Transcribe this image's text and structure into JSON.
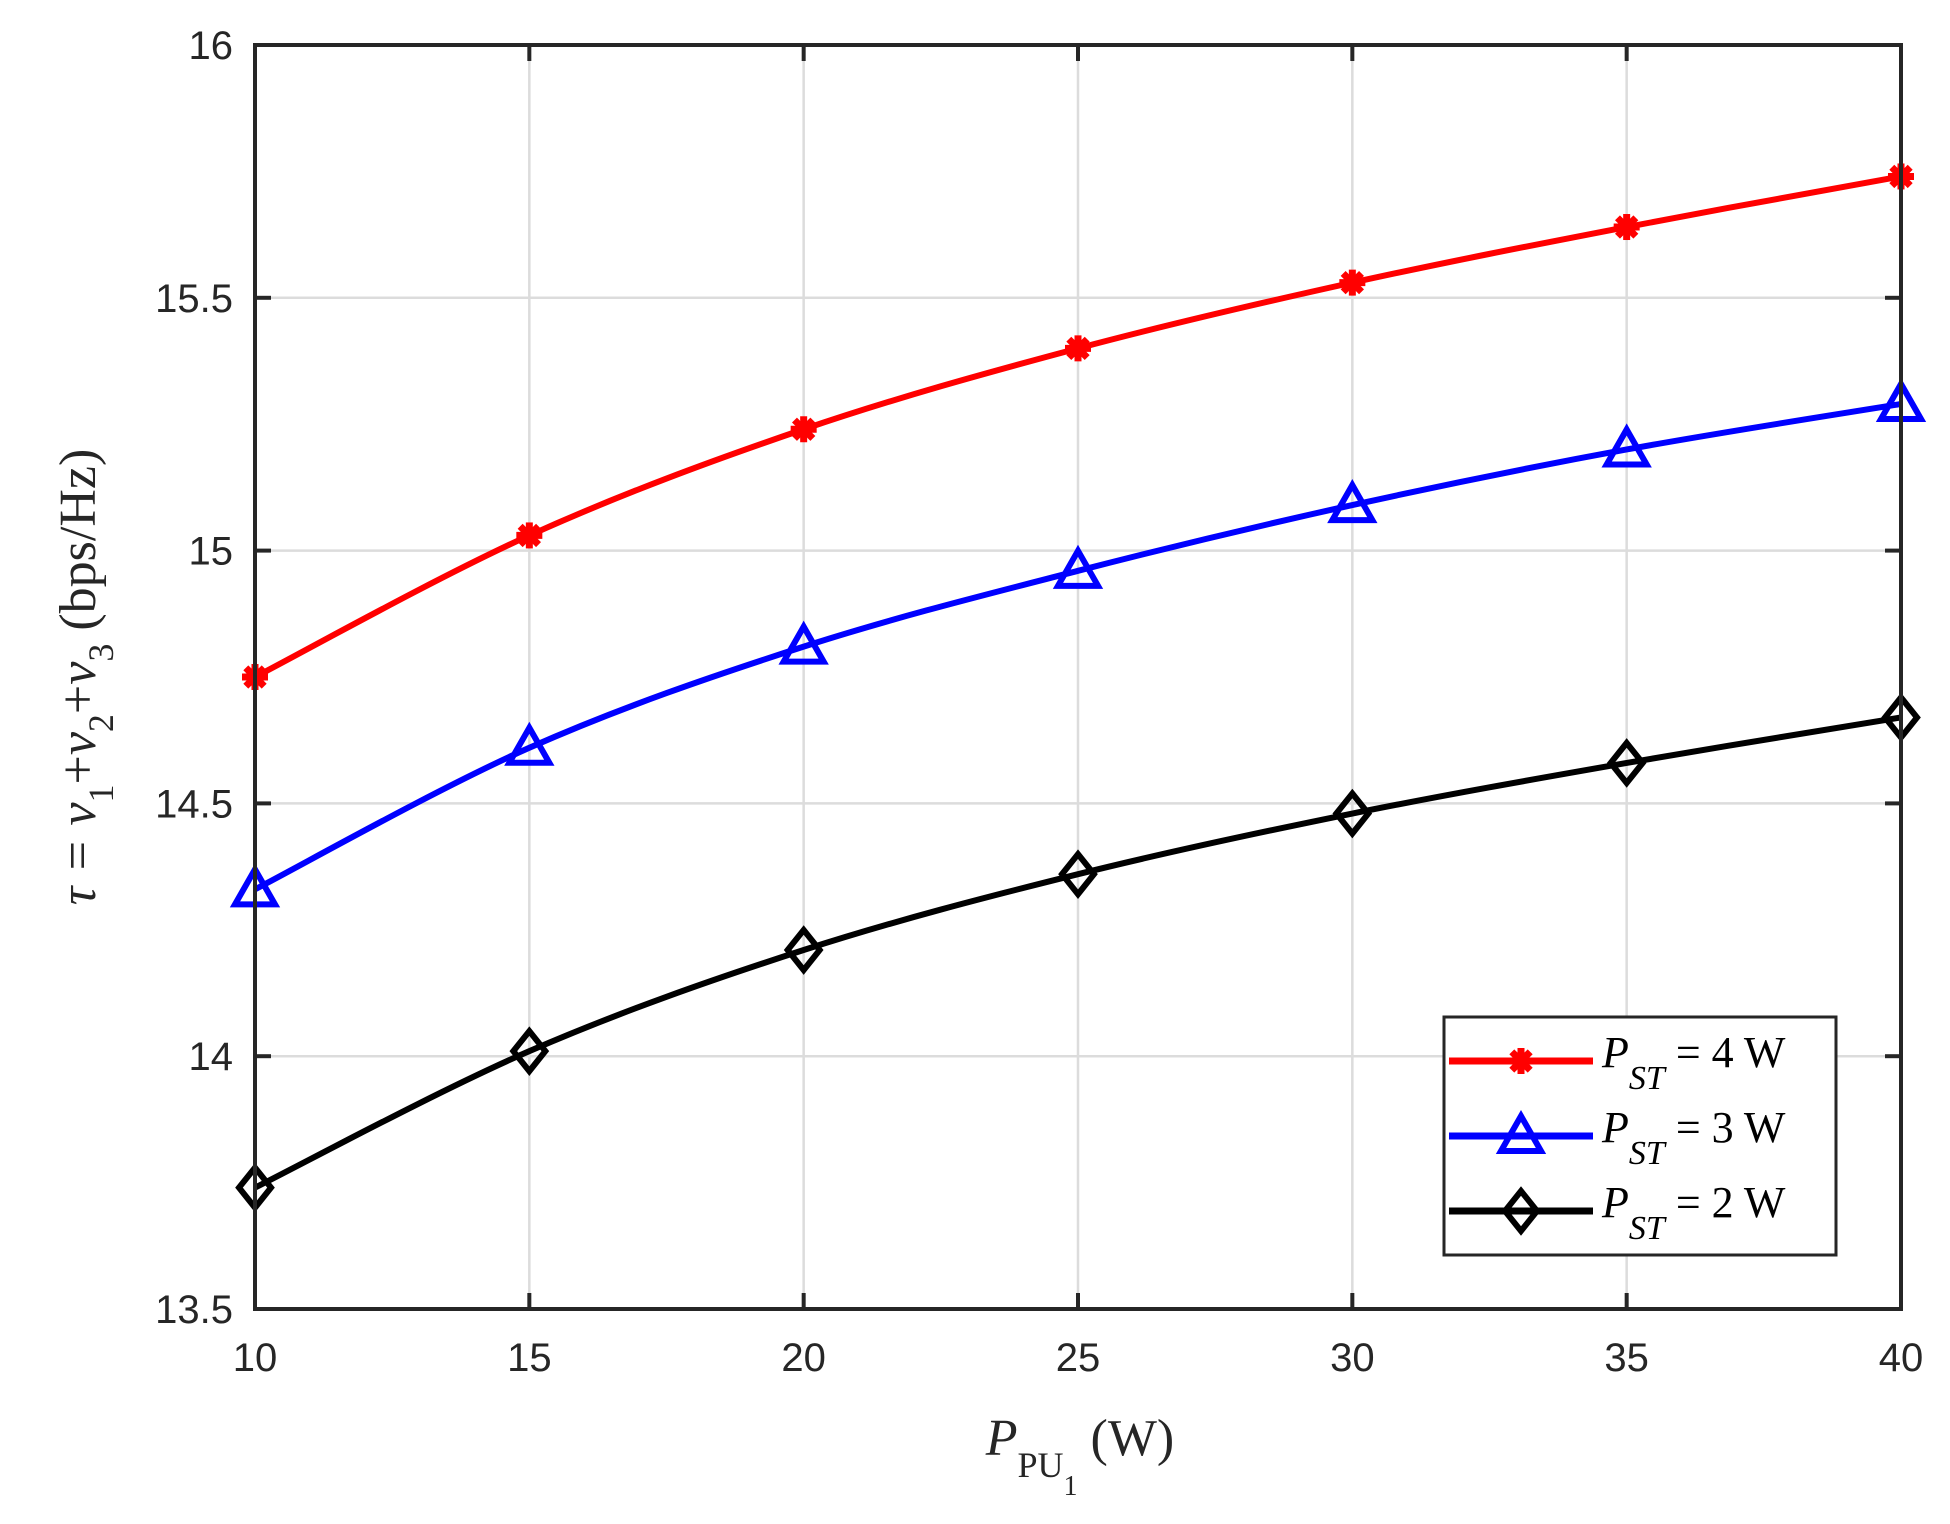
{
  "chart_data": {
    "type": "line",
    "title": "",
    "xlabel": {
      "main": "P",
      "sub": "PU",
      "subsub": "1",
      "unit": " (W)"
    },
    "ylabel": {
      "prefix": "τ = ",
      "v": "v",
      "s1": "1",
      "s2": "2",
      "s3": "3",
      "unit": " (bps/Hz)"
    },
    "xlim": [
      10,
      40
    ],
    "ylim": [
      13.5,
      16
    ],
    "xticks": [
      "10",
      "15",
      "20",
      "25",
      "30",
      "35",
      "40"
    ],
    "yticks": [
      "13.5",
      "14",
      "14.5",
      "15",
      "15.5",
      "16"
    ],
    "grid": true,
    "legend_placement": "bottom-right",
    "x": [
      10,
      15,
      20,
      25,
      30,
      35,
      40
    ],
    "series": [
      {
        "name": "P_ST = 4 W",
        "label": {
          "p": "P",
          "sub": "ST",
          "rest": " = 4 W"
        },
        "color": "#ff0000",
        "marker": "asterisk",
        "values": [
          14.75,
          15.03,
          15.24,
          15.4,
          15.53,
          15.64,
          15.74
        ]
      },
      {
        "name": "P_ST = 3 W",
        "label": {
          "p": "P",
          "sub": "ST",
          "rest": " = 3 W"
        },
        "color": "#0000ff",
        "marker": "triangle",
        "values": [
          14.33,
          14.61,
          14.81,
          14.96,
          15.09,
          15.2,
          15.29
        ]
      },
      {
        "name": "P_ST = 2 W",
        "label": {
          "p": "P",
          "sub": "ST",
          "rest": " = 2 W"
        },
        "color": "#000000",
        "marker": "diamond",
        "values": [
          13.74,
          14.01,
          14.21,
          14.36,
          14.48,
          14.58,
          14.67
        ]
      }
    ]
  }
}
